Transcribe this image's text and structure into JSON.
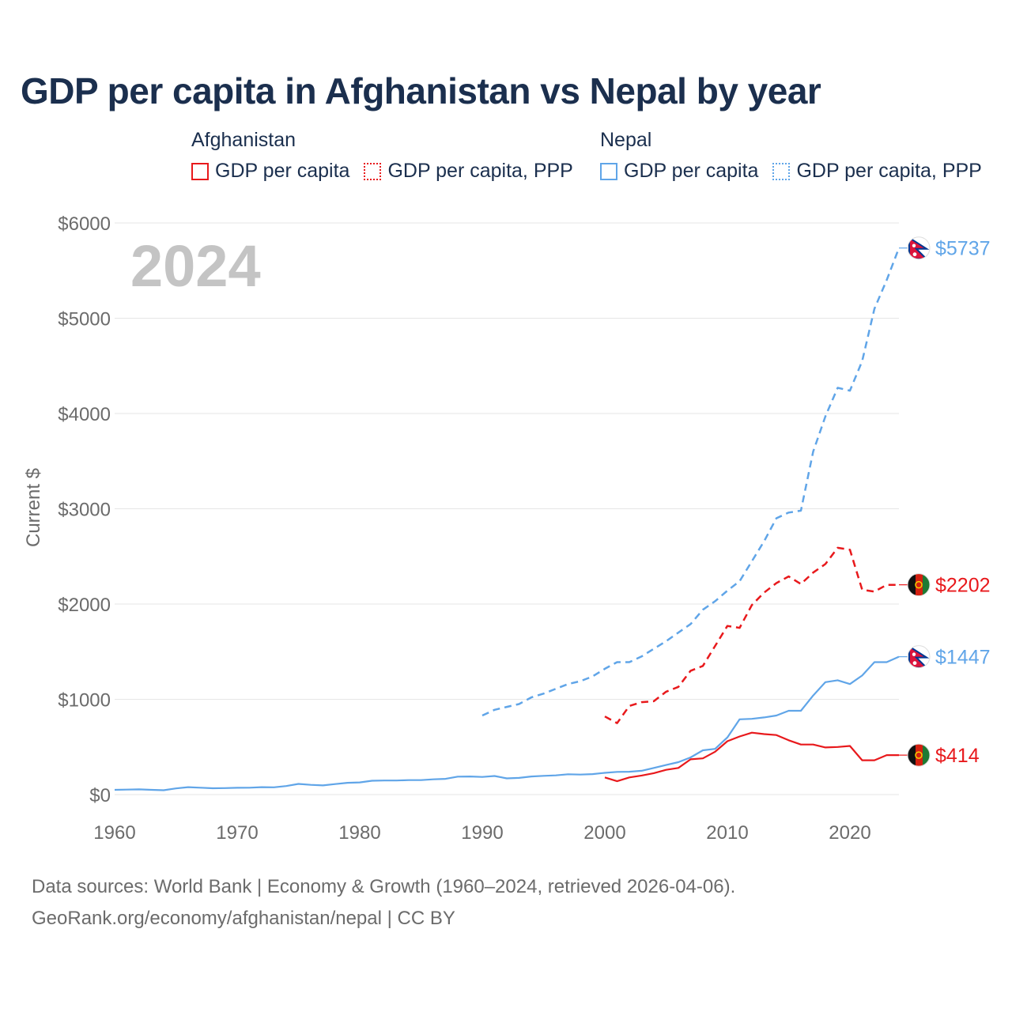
{
  "title": "GDP per capita in Afghanistan vs Nepal by year",
  "legend": {
    "afghanistan": {
      "name": "Afghanistan",
      "item1": "GDP per capita",
      "item2": "GDP per capita, PPP"
    },
    "nepal": {
      "name": "Nepal",
      "item1": "GDP per capita",
      "item2": "GDP per capita, PPP"
    }
  },
  "colors": {
    "afghanistan": "#e8191c",
    "nepal": "#60a5e8",
    "title": "#1b2f4e",
    "axis_text": "#6b6b6b",
    "year_label": "#c4c4c4"
  },
  "year_label": "2024",
  "footer": {
    "line1": "Data sources: World Bank | Economy & Growth (1960–2024, retrieved 2026-04-06).",
    "line2": "GeoRank.org/economy/afghanistan/nepal | CC BY"
  },
  "chart_data": {
    "type": "line",
    "title": "GDP per capita in Afghanistan vs Nepal by year",
    "xlabel": "",
    "ylabel": "Current $",
    "xlim": [
      1960,
      2024
    ],
    "ylim": [
      0,
      6000
    ],
    "x_ticks": [
      1960,
      1970,
      1980,
      1990,
      2000,
      2010,
      2020
    ],
    "y_ticks": [
      0,
      1000,
      2000,
      3000,
      4000,
      5000,
      6000
    ],
    "y_tick_labels": [
      "$0",
      "$1000",
      "$2000",
      "$3000",
      "$4000",
      "$5000",
      "$6000"
    ],
    "grid": true,
    "series": [
      {
        "name": "Nepal GDP per capita",
        "country": "nepal",
        "style": "solid",
        "end_label": "$1447",
        "x": [
          1960,
          1961,
          1962,
          1963,
          1964,
          1965,
          1966,
          1967,
          1968,
          1969,
          1970,
          1971,
          1972,
          1973,
          1974,
          1975,
          1976,
          1977,
          1978,
          1979,
          1980,
          1981,
          1982,
          1983,
          1984,
          1985,
          1986,
          1987,
          1988,
          1989,
          1990,
          1991,
          1992,
          1993,
          1994,
          1995,
          1996,
          1997,
          1998,
          1999,
          2000,
          2001,
          2002,
          2003,
          2004,
          2005,
          2006,
          2007,
          2008,
          2009,
          2010,
          2011,
          2012,
          2013,
          2014,
          2015,
          2016,
          2017,
          2018,
          2019,
          2020,
          2021,
          2022,
          2023,
          2024
        ],
        "values": [
          50,
          52,
          55,
          50,
          46,
          65,
          78,
          72,
          66,
          68,
          71,
          72,
          78,
          76,
          90,
          112,
          102,
          96,
          110,
          124,
          128,
          145,
          148,
          148,
          152,
          152,
          160,
          165,
          188,
          190,
          185,
          195,
          170,
          175,
          190,
          197,
          202,
          213,
          210,
          215,
          228,
          238,
          240,
          250,
          280,
          310,
          340,
          390,
          465,
          480,
          600,
          790,
          795,
          810,
          830,
          880,
          880,
          1040,
          1180,
          1200,
          1160,
          1250,
          1390,
          1390,
          1447
        ]
      },
      {
        "name": "Nepal GDP per capita, PPP",
        "country": "nepal",
        "style": "dashed",
        "end_label": "$5737",
        "x": [
          1990,
          1991,
          1992,
          1993,
          1994,
          1995,
          1996,
          1997,
          1998,
          1999,
          2000,
          2001,
          2002,
          2003,
          2004,
          2005,
          2006,
          2007,
          2008,
          2009,
          2010,
          2011,
          2012,
          2013,
          2014,
          2015,
          2016,
          2017,
          2018,
          2019,
          2020,
          2021,
          2022,
          2023,
          2024
        ],
        "values": [
          830,
          890,
          920,
          950,
          1020,
          1060,
          1110,
          1160,
          1190,
          1240,
          1320,
          1390,
          1390,
          1450,
          1530,
          1610,
          1700,
          1790,
          1940,
          2030,
          2140,
          2240,
          2450,
          2660,
          2900,
          2960,
          2980,
          3600,
          3970,
          4270,
          4240,
          4550,
          5100,
          5400,
          5737
        ]
      },
      {
        "name": "Afghanistan GDP per capita",
        "country": "afghanistan",
        "style": "solid",
        "end_label": "$414",
        "x": [
          2000,
          2001,
          2002,
          2003,
          2004,
          2005,
          2006,
          2007,
          2008,
          2009,
          2010,
          2011,
          2012,
          2013,
          2014,
          2015,
          2016,
          2017,
          2018,
          2019,
          2020,
          2021,
          2022,
          2023,
          2024
        ],
        "values": [
          180,
          140,
          180,
          200,
          225,
          260,
          280,
          370,
          380,
          450,
          560,
          610,
          650,
          635,
          625,
          570,
          525,
          525,
          495,
          500,
          510,
          360,
          360,
          414,
          414
        ]
      },
      {
        "name": "Afghanistan GDP per capita, PPP",
        "country": "afghanistan",
        "style": "dashed",
        "end_label": "$2202",
        "x": [
          2000,
          2001,
          2002,
          2003,
          2004,
          2005,
          2006,
          2007,
          2008,
          2009,
          2010,
          2011,
          2012,
          2013,
          2014,
          2015,
          2016,
          2017,
          2018,
          2019,
          2020,
          2021,
          2022,
          2023,
          2024
        ],
        "values": [
          820,
          750,
          930,
          970,
          980,
          1080,
          1130,
          1300,
          1350,
          1560,
          1770,
          1750,
          1990,
          2120,
          2220,
          2290,
          2210,
          2330,
          2420,
          2590,
          2570,
          2150,
          2130,
          2202,
          2202
        ]
      }
    ]
  }
}
